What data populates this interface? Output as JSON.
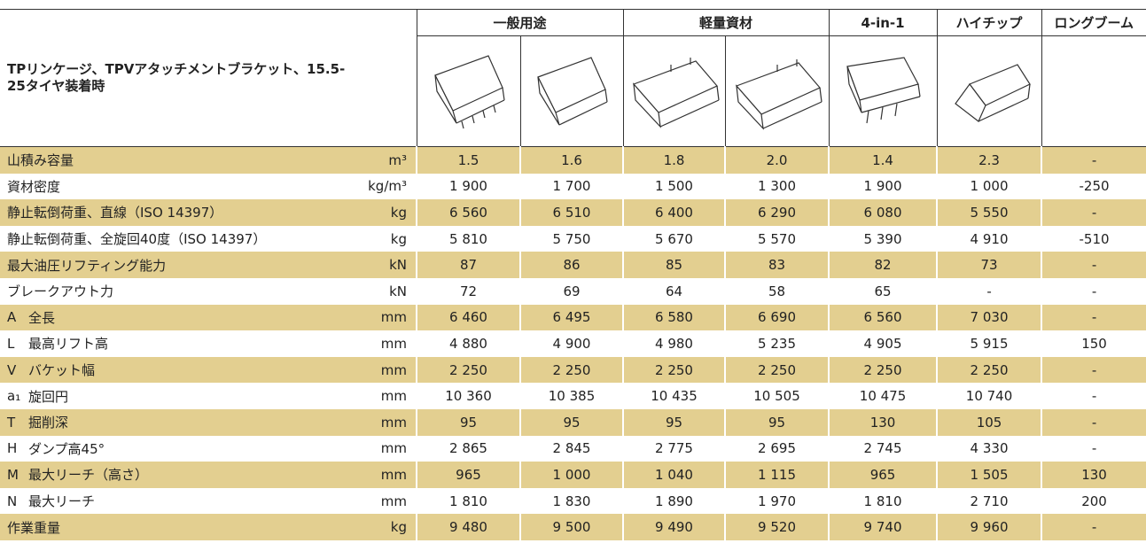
{
  "header": {
    "title": "TPリンケージ、TPVアタッチメントブラケット、15.5-25タイヤ装着時"
  },
  "table": {
    "groups": [
      "一般用途",
      "軽量資材",
      "4-in-1",
      "ハイチップ",
      "ロングブーム"
    ],
    "rows": [
      {
        "label": "山積み容量",
        "unit": "m³",
        "values": [
          "1.5",
          "1.6",
          "1.8",
          "2.0",
          "1.4",
          "2.3",
          "-"
        ]
      },
      {
        "label": "資材密度",
        "unit": "kg/m³",
        "values": [
          "1 900",
          "1 700",
          "1 500",
          "1 300",
          "1 900",
          "1 000",
          "-250"
        ]
      },
      {
        "label": "静止転倒荷重、直線（ISO 14397）",
        "unit": "kg",
        "values": [
          "6 560",
          "6 510",
          "6 400",
          "6 290",
          "6 080",
          "5 550",
          "-"
        ]
      },
      {
        "label": "静止転倒荷重、全旋回40度（ISO 14397）",
        "unit": "kg",
        "values": [
          "5 810",
          "5 750",
          "5 670",
          "5 570",
          "5 390",
          "4 910",
          "-510"
        ]
      },
      {
        "label": "最大油圧リフティング能力",
        "unit": "kN",
        "values": [
          "87",
          "86",
          "85",
          "83",
          "82",
          "73",
          "-"
        ]
      },
      {
        "label": "ブレークアウト力",
        "unit": "kN",
        "values": [
          "72",
          "69",
          "64",
          "58",
          "65",
          "-",
          "-"
        ]
      },
      {
        "code": "A",
        "label": "全長",
        "unit": "mm",
        "values": [
          "6 460",
          "6 495",
          "6 580",
          "6 690",
          "6 560",
          "7 030",
          "-"
        ]
      },
      {
        "code": "L",
        "label": "最高リフト高",
        "unit": "mm",
        "values": [
          "4 880",
          "4 900",
          "4 980",
          "5 235",
          "4 905",
          "5 915",
          "150"
        ]
      },
      {
        "code": "V",
        "label": "バケット幅",
        "unit": "mm",
        "values": [
          "2 250",
          "2 250",
          "2 250",
          "2 250",
          "2 250",
          "2 250",
          "-"
        ]
      },
      {
        "code": "a₁",
        "label": "旋回円",
        "unit": "mm",
        "values": [
          "10 360",
          "10 385",
          "10 435",
          "10 505",
          "10 475",
          "10 740",
          "-"
        ]
      },
      {
        "code": "T",
        "label": "掘削深",
        "unit": "mm",
        "values": [
          "95",
          "95",
          "95",
          "95",
          "130",
          "105",
          "-"
        ]
      },
      {
        "code": "H",
        "label": "ダンプ高45°",
        "unit": "mm",
        "values": [
          "2 865",
          "2 845",
          "2 775",
          "2 695",
          "2 745",
          "4 330",
          "-"
        ]
      },
      {
        "code": "M",
        "label": "最大リーチ（高さ）",
        "unit": "mm",
        "values": [
          "965",
          "1 000",
          "1 040",
          "1 115",
          "965",
          "1 505",
          "130"
        ]
      },
      {
        "code": "N",
        "label": "最大リーチ",
        "unit": "mm",
        "values": [
          "1 810",
          "1 830",
          "1 890",
          "1 970",
          "1 810",
          "2 710",
          "200"
        ]
      },
      {
        "label": "作業重量",
        "unit": "kg",
        "values": [
          "9 480",
          "9 500",
          "9 490",
          "9 520",
          "9 740",
          "9 960",
          "-"
        ]
      }
    ]
  }
}
